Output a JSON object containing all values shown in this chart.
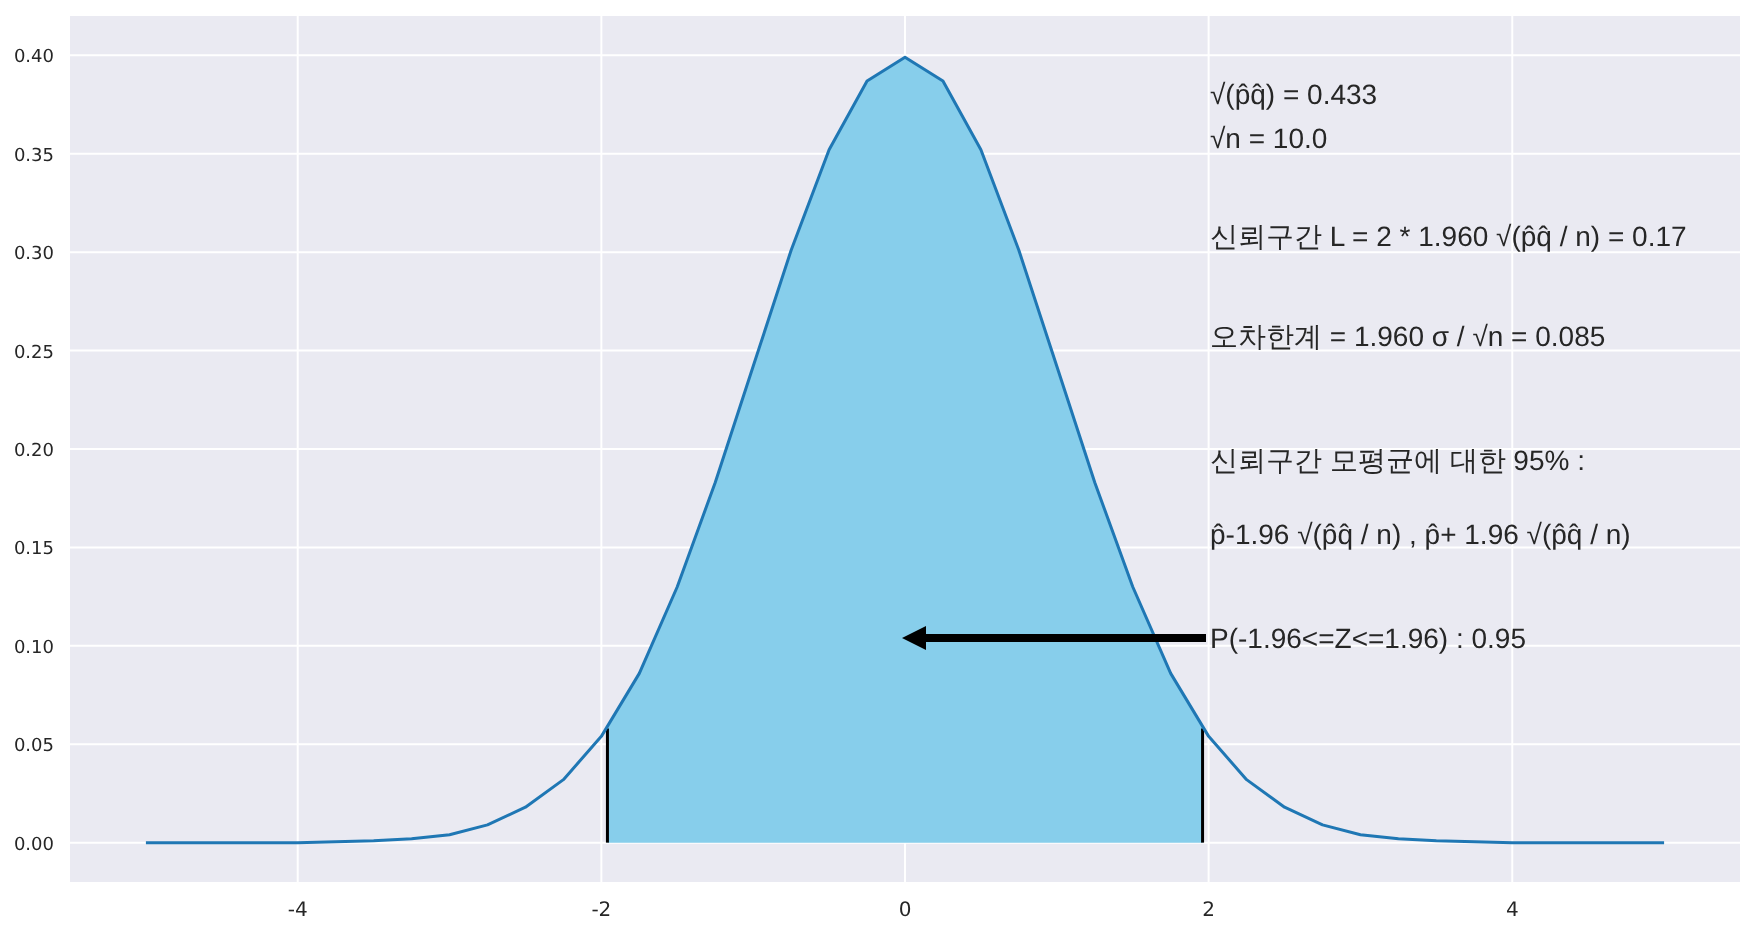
{
  "chart_data": {
    "type": "line",
    "xlim": [
      -5.5,
      5.5
    ],
    "ylim": [
      -0.02,
      0.42
    ],
    "xticks": [
      -4,
      -2,
      0,
      2,
      4
    ],
    "yticks": [
      {
        "value": 0,
        "label": "0.00"
      },
      {
        "value": 0.05,
        "label": "0.05"
      },
      {
        "value": 0.1,
        "label": "0.10"
      },
      {
        "value": 0.15,
        "label": "0.15"
      },
      {
        "value": 0.2,
        "label": "0.20"
      },
      {
        "value": 0.25,
        "label": "0.25"
      },
      {
        "value": 0.3,
        "label": "0.30"
      },
      {
        "value": 0.35,
        "label": "0.35"
      },
      {
        "value": 0.4,
        "label": "0.40"
      }
    ],
    "grid": true,
    "series": [
      {
        "type": "area",
        "color": "#87ceeb",
        "x": [
          -1.96,
          -1.75,
          -1.5,
          -1.25,
          -1,
          -0.75,
          -0.5,
          -0.25,
          0,
          0.25,
          0.5,
          0.75,
          1,
          1.25,
          1.5,
          1.75,
          1.96
        ],
        "values": [
          0.058,
          0.086,
          0.13,
          0.183,
          0.242,
          0.301,
          0.352,
          0.387,
          0.399,
          0.387,
          0.352,
          0.301,
          0.242,
          0.183,
          0.13,
          0.086,
          0.058
        ]
      },
      {
        "type": "line",
        "color": "#000000",
        "x": [
          -1.96,
          -1.96
        ],
        "values": [
          0,
          0.058
        ]
      },
      {
        "type": "line",
        "color": "#000000",
        "x": [
          1.96,
          1.96
        ],
        "values": [
          0,
          0.058
        ]
      },
      {
        "color": "#1f77b4",
        "x": [
          -5,
          -4.5,
          -4,
          -3.5,
          -3.25,
          -3,
          -2.75,
          -2.5,
          -2.25,
          -2,
          -1.75,
          -1.5,
          -1.25,
          -1,
          -0.75,
          -0.5,
          -0.25,
          0,
          0.25,
          0.5,
          0.75,
          1,
          1.25,
          1.5,
          1.75,
          2,
          2.25,
          2.5,
          2.75,
          3,
          3.25,
          3.5,
          4,
          4.5,
          5
        ],
        "values": [
          0,
          0,
          0,
          0.001,
          0.002,
          0.004,
          0.009,
          0.018,
          0.032,
          0.054,
          0.086,
          0.13,
          0.183,
          0.242,
          0.301,
          0.352,
          0.387,
          0.399,
          0.387,
          0.352,
          0.301,
          0.242,
          0.183,
          0.13,
          0.086,
          0.054,
          0.032,
          0.018,
          0.009,
          0.004,
          0.002,
          0.001,
          0,
          0,
          0
        ]
      }
    ],
    "annotations": [
      "√(p̂q̂) = 0.433",
      "√n = 10.0",
      "신뢰구간 L = 2 * 1.960 √(p̂q̂ / n) = 0.17",
      "오차한계 = 1.960 σ / √n = 0.085",
      "신뢰구간 모평균에 대한 95% :",
      "p̂-1.96 √(p̂q̂ / n) , p̂+ 1.96 √(p̂q̂ / n)",
      "P(-1.96<=Z<=1.96) : 0.95"
    ]
  }
}
